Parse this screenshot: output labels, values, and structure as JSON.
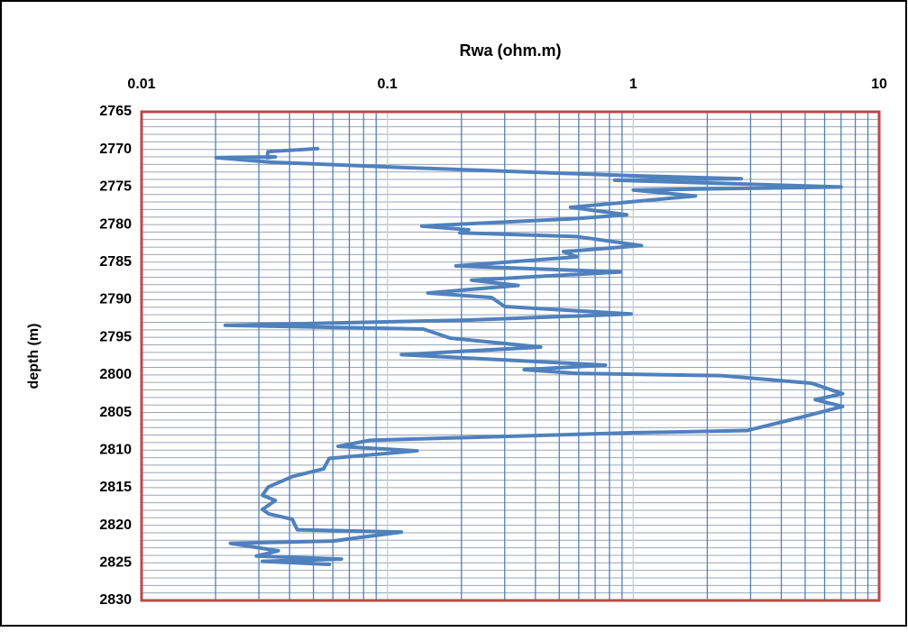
{
  "chart_data": {
    "type": "line",
    "title": "Rwa (ohm.m)",
    "y_label": "depth (m)",
    "xscale": "log",
    "xlim": [
      0.01,
      10
    ],
    "xticks": [
      0.01,
      0.1,
      1,
      10
    ],
    "x_minor_grid": [
      0.02,
      0.03,
      0.04,
      0.05,
      0.06,
      0.07,
      0.08,
      0.09,
      0.2,
      0.3,
      0.4,
      0.5,
      0.6,
      0.7,
      0.8,
      0.9,
      2,
      3,
      4,
      5,
      6,
      7,
      8,
      9
    ],
    "ylim": [
      2765,
      2830
    ],
    "yreverse": true,
    "yticks": [
      2765,
      2770,
      2775,
      2780,
      2785,
      2790,
      2795,
      2800,
      2805,
      2810,
      2815,
      2820,
      2825,
      2830
    ],
    "y_minor_grid": [
      2766,
      2767,
      2768,
      2769,
      2771,
      2772,
      2773,
      2774,
      2776,
      2777,
      2778,
      2779,
      2781,
      2782,
      2783,
      2784,
      2786,
      2787,
      2788,
      2789,
      2791,
      2792,
      2793,
      2794,
      2796,
      2797,
      2798,
      2799,
      2801,
      2802,
      2803,
      2804,
      2806,
      2807,
      2808,
      2809,
      2811,
      2812,
      2813,
      2814,
      2816,
      2817,
      2818,
      2819,
      2821,
      2822,
      2823,
      2824,
      2826,
      2827,
      2828,
      2829
    ],
    "color": "#4f81bd",
    "x": [
      0.052,
      0.0327,
      0.0324,
      0.035,
      0.0201,
      0.0335,
      0.114,
      0.98,
      2.75,
      0.84,
      7.0,
      1.0,
      1.79,
      0.556,
      0.94,
      0.59,
      0.138,
      0.214,
      0.197,
      0.59,
      1.08,
      0.52,
      0.59,
      0.19,
      0.89,
      0.22,
      0.34,
      0.146,
      0.265,
      0.3,
      0.98,
      0.215,
      0.0219,
      0.14,
      0.18,
      0.42,
      0.114,
      0.77,
      0.36,
      0.59,
      2.28,
      5.3,
      7.1,
      5.5,
      7.1,
      5.0,
      2.9,
      0.98,
      0.085,
      0.063,
      0.132,
      0.058,
      0.055,
      0.0412,
      0.0328,
      0.031,
      0.035,
      0.031,
      0.033,
      0.041,
      0.043,
      0.114,
      0.06,
      0.023,
      0.036,
      0.0293,
      0.065,
      0.031,
      0.058
    ],
    "values": [
      2769.9,
      2770.3,
      2771.1,
      2771.0,
      2771.1,
      2771.7,
      2772.4,
      2773.5,
      2773.9,
      2774.1,
      2775.0,
      2775.4,
      2776.2,
      2777.7,
      2778.7,
      2779.2,
      2780.2,
      2780.7,
      2781.1,
      2781.6,
      2782.8,
      2783.6,
      2784.3,
      2785.5,
      2786.3,
      2787.4,
      2788.1,
      2789.1,
      2789.7,
      2790.9,
      2791.9,
      2792.7,
      2793.4,
      2793.9,
      2795.1,
      2796.3,
      2797.3,
      2798.7,
      2799.3,
      2799.8,
      2800.1,
      2801.1,
      2802.5,
      2803.3,
      2804.2,
      2805.5,
      2807.4,
      2807.7,
      2808.7,
      2809.5,
      2810.1,
      2811.1,
      2812.5,
      2813.5,
      2814.9,
      2816.0,
      2816.7,
      2817.9,
      2818.5,
      2819.2,
      2820.6,
      2820.9,
      2822.1,
      2822.4,
      2823.4,
      2824.1,
      2824.5,
      2824.8,
      2825.2
    ]
  }
}
